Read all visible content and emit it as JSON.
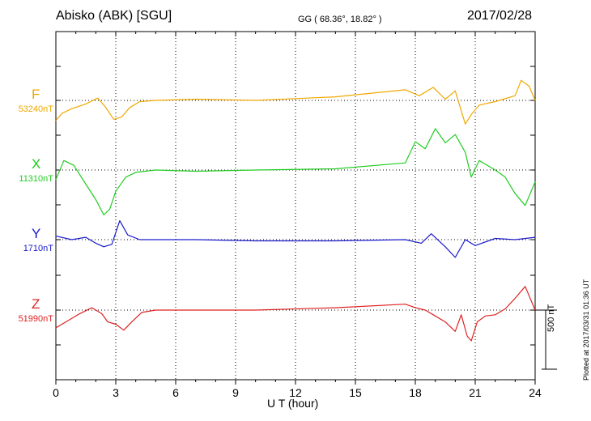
{
  "header": {
    "station": "Abisko (ABK)  [SGU]",
    "coords": "GG ( 68.36°,  18.82° )",
    "date": "2017/02/28"
  },
  "side_notes": {
    "scale": "500 nT",
    "plotted": "Plotted at 2017/03/31 01:36 UT"
  },
  "chart_data": {
    "type": "line",
    "xlabel": "U T (hour)",
    "xlim": [
      0,
      24
    ],
    "xticks": [
      0,
      3,
      6,
      9,
      12,
      15,
      18,
      21,
      24
    ],
    "scale_bar_nT": 500,
    "grid": "dotted vertical at every 3 h; dotted baseline per component",
    "series": [
      {
        "name": "F",
        "baseline_label": "53240nT",
        "color": "#f0a800",
        "x": [
          0,
          0.3,
          0.8,
          1.5,
          2.1,
          2.5,
          2.9,
          3.3,
          3.7,
          4.2,
          5,
          7,
          10,
          14,
          17.5,
          18.2,
          18.9,
          19.5,
          20,
          20.5,
          20.8,
          21.2,
          22,
          23,
          23.3,
          23.7,
          24
        ],
        "y": [
          -170,
          -110,
          -70,
          -30,
          20,
          -60,
          -160,
          -140,
          -60,
          -10,
          0,
          10,
          0,
          30,
          90,
          40,
          110,
          10,
          80,
          -200,
          -120,
          -40,
          -10,
          40,
          170,
          120,
          0
        ]
      },
      {
        "name": "X",
        "baseline_label": "11310nT",
        "color": "#22cc22",
        "x": [
          0,
          0.4,
          0.9,
          1.5,
          2,
          2.4,
          2.7,
          3,
          3.5,
          4,
          5,
          7,
          10,
          14,
          17.5,
          18,
          18.5,
          19,
          19.5,
          20,
          20.5,
          20.8,
          21.2,
          22,
          22.5,
          23,
          23.5,
          24
        ],
        "y": [
          -80,
          80,
          40,
          -120,
          -250,
          -380,
          -330,
          -180,
          -60,
          -20,
          0,
          -10,
          0,
          10,
          60,
          240,
          180,
          350,
          230,
          300,
          150,
          -60,
          80,
          0,
          -60,
          -200,
          -300,
          -100
        ]
      },
      {
        "name": "Y",
        "baseline_label": "1710nT",
        "color": "#1a1acc",
        "x": [
          0,
          0.8,
          1.5,
          2,
          2.4,
          2.8,
          3.2,
          3.6,
          4.2,
          5,
          7,
          10,
          14,
          17.5,
          18.3,
          18.8,
          19.5,
          20,
          20.5,
          21,
          22,
          23,
          24
        ],
        "y": [
          30,
          0,
          20,
          -30,
          -60,
          -40,
          160,
          40,
          0,
          0,
          0,
          -10,
          -10,
          0,
          -30,
          50,
          -60,
          -150,
          0,
          -50,
          10,
          0,
          20
        ]
      },
      {
        "name": "Z",
        "baseline_label": "51990nT",
        "color": "#dd2222",
        "x": [
          0,
          0.5,
          1.2,
          1.8,
          2.3,
          2.6,
          3,
          3.4,
          3.8,
          4.3,
          5,
          7,
          10,
          14,
          17.5,
          18,
          18.5,
          19,
          19.5,
          20,
          20.3,
          20.6,
          20.8,
          21.1,
          21.5,
          22,
          22.5,
          23,
          23.5,
          24
        ],
        "y": [
          -150,
          -100,
          -30,
          20,
          -30,
          -100,
          -120,
          -170,
          -100,
          -20,
          0,
          0,
          0,
          20,
          50,
          20,
          0,
          -50,
          -100,
          -180,
          -40,
          -220,
          -260,
          -100,
          -50,
          -40,
          10,
          100,
          200,
          0
        ]
      }
    ]
  }
}
